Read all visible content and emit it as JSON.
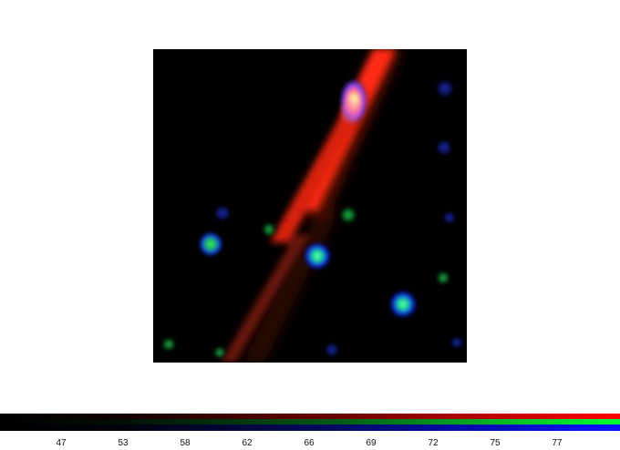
{
  "viewer": {
    "background_color": "#000000",
    "channels": [
      {
        "name": "red",
        "color": "#ff2a14"
      },
      {
        "name": "green",
        "color": "#18e05a"
      },
      {
        "name": "blue",
        "color": "#1a2cff"
      }
    ]
  },
  "colorbar": {
    "tick_labels": [
      "47",
      "53",
      "58",
      "62",
      "66",
      "69",
      "72",
      "75",
      "77"
    ]
  }
}
